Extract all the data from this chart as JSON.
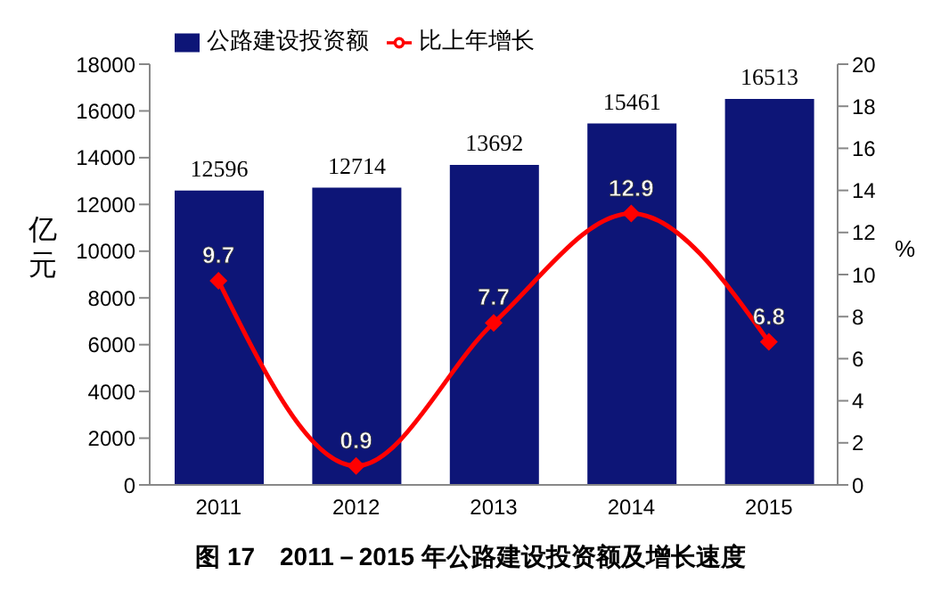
{
  "chart_data": {
    "type": "bar",
    "title": "图 17　2011－2015 年公路建设投资额及增长速度",
    "ylabel": "亿元",
    "y2label": "%",
    "categories": [
      "2011",
      "2012",
      "2013",
      "2014",
      "2015"
    ],
    "series": [
      {
        "name": "公路建设投资额",
        "color": "#0d1577",
        "values": [
          12596,
          12714,
          13692,
          15461,
          16513
        ]
      },
      {
        "name": "比上年增长",
        "type": "line",
        "axis": "y2",
        "color": "#ff0000",
        "values": [
          9.7,
          0.9,
          7.7,
          12.9,
          6.8
        ]
      }
    ],
    "ylim": [
      0,
      18000
    ],
    "yticks": [
      0,
      2000,
      4000,
      6000,
      8000,
      10000,
      12000,
      14000,
      16000,
      18000
    ],
    "y2lim": [
      0,
      20
    ],
    "y2ticks": [
      0,
      2,
      4,
      6,
      8,
      10,
      12,
      14,
      16,
      18,
      20
    ],
    "data_labels": true,
    "legend": "top left",
    "grid": false,
    "marker": "diamond",
    "line_style": "solid"
  }
}
